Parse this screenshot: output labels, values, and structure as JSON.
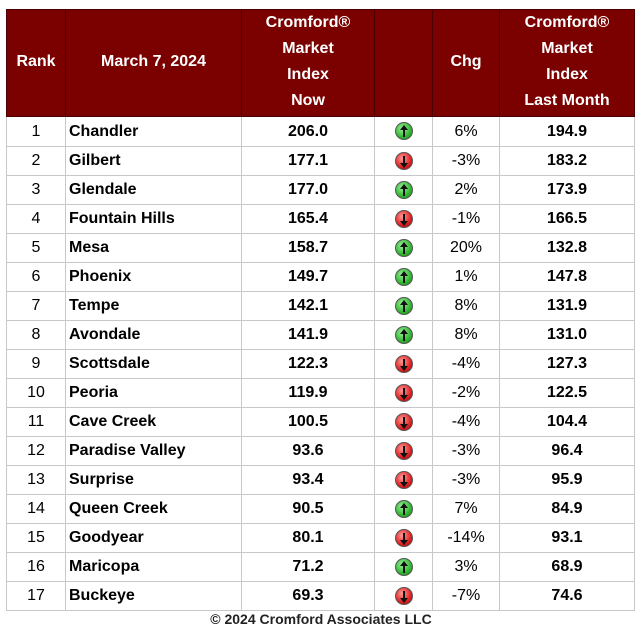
{
  "header": {
    "rank": "Rank",
    "date": "March 7, 2024",
    "now": [
      "Cromford®",
      "Market",
      "Index",
      "Now"
    ],
    "chg": "Chg",
    "last": [
      "Cromford®",
      "Market",
      "Index",
      "Last Month"
    ]
  },
  "colors": {
    "header_bg": "#7b0000",
    "up": "#2fb52f",
    "down": "#e02020"
  },
  "rows": [
    {
      "rank": "1",
      "name": "Chandler",
      "now": "206.0",
      "dir": "up",
      "icon": "green-up-arrow-icon",
      "chg": "6%",
      "last": "194.9"
    },
    {
      "rank": "2",
      "name": "Gilbert",
      "now": "177.1",
      "dir": "down",
      "icon": "red-down-arrow-icon",
      "chg": "-3%",
      "last": "183.2"
    },
    {
      "rank": "3",
      "name": "Glendale",
      "now": "177.0",
      "dir": "up",
      "icon": "green-up-arrow-icon",
      "chg": "2%",
      "last": "173.9"
    },
    {
      "rank": "4",
      "name": "Fountain Hills",
      "now": "165.4",
      "dir": "down",
      "icon": "red-down-arrow-icon",
      "chg": "-1%",
      "last": "166.5"
    },
    {
      "rank": "5",
      "name": "Mesa",
      "now": "158.7",
      "dir": "up",
      "icon": "green-up-arrow-icon",
      "chg": "20%",
      "last": "132.8"
    },
    {
      "rank": "6",
      "name": "Phoenix",
      "now": "149.7",
      "dir": "up",
      "icon": "green-up-arrow-icon",
      "chg": "1%",
      "last": "147.8"
    },
    {
      "rank": "7",
      "name": "Tempe",
      "now": "142.1",
      "dir": "up",
      "icon": "green-up-arrow-icon",
      "chg": "8%",
      "last": "131.9"
    },
    {
      "rank": "8",
      "name": "Avondale",
      "now": "141.9",
      "dir": "up",
      "icon": "green-up-arrow-icon",
      "chg": "8%",
      "last": "131.0"
    },
    {
      "rank": "9",
      "name": "Scottsdale",
      "now": "122.3",
      "dir": "down",
      "icon": "red-down-arrow-icon",
      "chg": "-4%",
      "last": "127.3"
    },
    {
      "rank": "10",
      "name": "Peoria",
      "now": "119.9",
      "dir": "down",
      "icon": "red-down-arrow-icon",
      "chg": "-2%",
      "last": "122.5"
    },
    {
      "rank": "11",
      "name": "Cave Creek",
      "now": "100.5",
      "dir": "down",
      "icon": "red-down-arrow-icon",
      "chg": "-4%",
      "last": "104.4"
    },
    {
      "rank": "12",
      "name": "Paradise Valley",
      "now": "93.6",
      "dir": "down",
      "icon": "red-down-arrow-icon",
      "chg": "-3%",
      "last": "96.4"
    },
    {
      "rank": "13",
      "name": "Surprise",
      "now": "93.4",
      "dir": "down",
      "icon": "red-down-arrow-icon",
      "chg": "-3%",
      "last": "95.9"
    },
    {
      "rank": "14",
      "name": "Queen Creek",
      "now": "90.5",
      "dir": "up",
      "icon": "green-up-arrow-icon",
      "chg": "7%",
      "last": "84.9"
    },
    {
      "rank": "15",
      "name": "Goodyear",
      "now": "80.1",
      "dir": "down",
      "icon": "red-down-arrow-icon",
      "chg": "-14%",
      "last": "93.1"
    },
    {
      "rank": "16",
      "name": "Maricopa",
      "now": "71.2",
      "dir": "up",
      "icon": "green-up-arrow-icon",
      "chg": "3%",
      "last": "68.9"
    },
    {
      "rank": "17",
      "name": "Buckeye",
      "now": "69.3",
      "dir": "down",
      "icon": "red-down-arrow-icon",
      "chg": "-7%",
      "last": "74.6"
    }
  ],
  "footer": "© 2024 Cromford Associates LLC"
}
